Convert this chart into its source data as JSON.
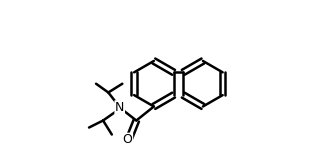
{
  "background_color": "#ffffff",
  "line_color": "#000000",
  "line_width": 1.8,
  "fig_width": 3.2,
  "fig_height": 1.48,
  "dpi": 100
}
